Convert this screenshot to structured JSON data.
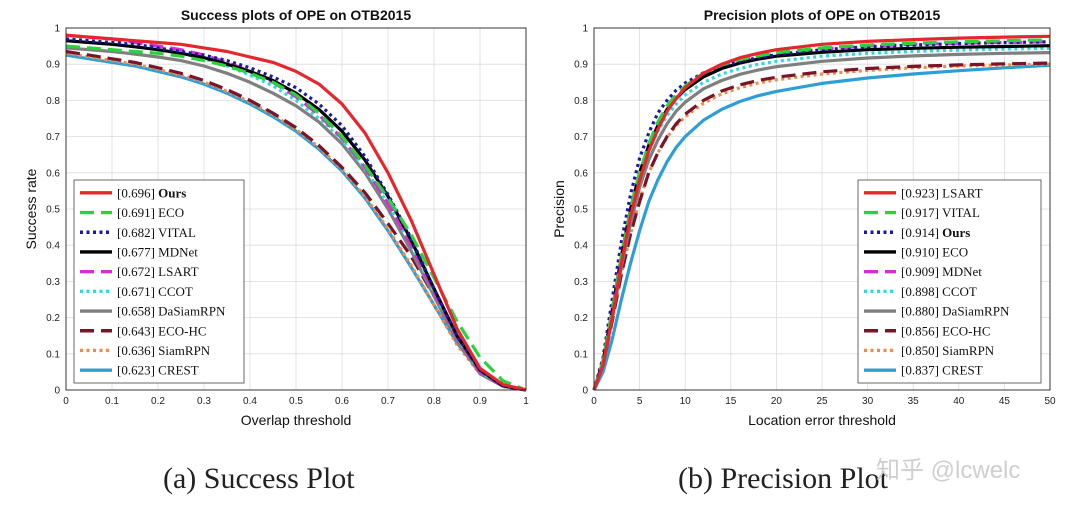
{
  "chart_data": [
    {
      "type": "line",
      "title": "Success plots of OPE on OTB2015",
      "xlabel": "Overlap threshold",
      "ylabel": "Success rate",
      "xlim": [
        0,
        1
      ],
      "ylim": [
        0,
        1
      ],
      "xticks": [
        "0",
        "0.1",
        "0.2",
        "0.3",
        "0.4",
        "0.5",
        "0.6",
        "0.7",
        "0.8",
        "0.9",
        "1"
      ],
      "yticks": [
        "0",
        "0.1",
        "0.2",
        "0.3",
        "0.4",
        "0.5",
        "0.6",
        "0.7",
        "0.8",
        "0.9",
        "1"
      ],
      "grid": true,
      "legend_position": "bottom-left",
      "x": [
        0,
        0.05,
        0.1,
        0.15,
        0.2,
        0.25,
        0.3,
        0.35,
        0.4,
        0.45,
        0.5,
        0.55,
        0.6,
        0.65,
        0.7,
        0.75,
        0.8,
        0.85,
        0.9,
        0.95,
        1.0
      ],
      "series": [
        {
          "name": "Ours",
          "score": "[0.696]",
          "bold": true,
          "color": "#e5262d",
          "dash": "solid",
          "values": [
            0.98,
            0.975,
            0.97,
            0.965,
            0.96,
            0.955,
            0.945,
            0.935,
            0.92,
            0.905,
            0.88,
            0.845,
            0.79,
            0.71,
            0.6,
            0.47,
            0.32,
            0.17,
            0.06,
            0.015,
            0
          ]
        },
        {
          "name": "ECO",
          "score": "[0.691]",
          "bold": false,
          "color": "#2ad33c",
          "dash": "dash",
          "values": [
            0.95,
            0.945,
            0.94,
            0.935,
            0.93,
            0.922,
            0.91,
            0.895,
            0.875,
            0.85,
            0.815,
            0.765,
            0.7,
            0.62,
            0.53,
            0.43,
            0.31,
            0.19,
            0.09,
            0.025,
            0
          ]
        },
        {
          "name": "VITAL",
          "score": "[0.682]",
          "bold": false,
          "color": "#1a1a9e",
          "dash": "dot",
          "values": [
            0.97,
            0.965,
            0.96,
            0.955,
            0.945,
            0.935,
            0.925,
            0.91,
            0.89,
            0.865,
            0.835,
            0.79,
            0.73,
            0.645,
            0.54,
            0.42,
            0.28,
            0.15,
            0.055,
            0.012,
            0
          ]
        },
        {
          "name": "MDNet",
          "score": "[0.677]",
          "bold": false,
          "color": "#000000",
          "dash": "solid",
          "values": [
            0.965,
            0.96,
            0.955,
            0.948,
            0.94,
            0.93,
            0.918,
            0.9,
            0.88,
            0.855,
            0.82,
            0.775,
            0.715,
            0.635,
            0.535,
            0.415,
            0.28,
            0.15,
            0.055,
            0.012,
            0
          ]
        },
        {
          "name": "LSART",
          "score": "[0.672]",
          "bold": false,
          "color": "#d62ed6",
          "dash": "dash",
          "values": [
            0.98,
            0.975,
            0.97,
            0.96,
            0.95,
            0.94,
            0.925,
            0.905,
            0.88,
            0.85,
            0.81,
            0.76,
            0.695,
            0.615,
            0.515,
            0.4,
            0.27,
            0.145,
            0.05,
            0.01,
            0
          ]
        },
        {
          "name": "CCOT",
          "score": "[0.671]",
          "bold": false,
          "color": "#33d6e0",
          "dash": "dot",
          "values": [
            0.965,
            0.96,
            0.955,
            0.948,
            0.94,
            0.93,
            0.915,
            0.895,
            0.87,
            0.84,
            0.8,
            0.75,
            0.69,
            0.61,
            0.515,
            0.4,
            0.27,
            0.145,
            0.05,
            0.01,
            0
          ]
        },
        {
          "name": "DaSiamRPN",
          "score": "[0.658]",
          "bold": false,
          "color": "#7f7f7f",
          "dash": "solid",
          "values": [
            0.945,
            0.94,
            0.935,
            0.928,
            0.92,
            0.91,
            0.895,
            0.875,
            0.85,
            0.82,
            0.785,
            0.74,
            0.68,
            0.6,
            0.5,
            0.385,
            0.26,
            0.135,
            0.045,
            0.01,
            0
          ]
        },
        {
          "name": "ECO-HC",
          "score": "[0.643]",
          "bold": false,
          "color": "#7a1426",
          "dash": "dash",
          "values": [
            0.935,
            0.925,
            0.915,
            0.905,
            0.89,
            0.875,
            0.855,
            0.83,
            0.8,
            0.765,
            0.725,
            0.675,
            0.615,
            0.545,
            0.46,
            0.37,
            0.26,
            0.145,
            0.055,
            0.012,
            0
          ]
        },
        {
          "name": "SiamRPN",
          "score": "[0.636]",
          "bold": false,
          "color": "#f08a4b",
          "dash": "dot",
          "values": [
            0.93,
            0.92,
            0.91,
            0.9,
            0.885,
            0.87,
            0.85,
            0.825,
            0.795,
            0.76,
            0.72,
            0.67,
            0.61,
            0.535,
            0.445,
            0.345,
            0.235,
            0.125,
            0.045,
            0.01,
            0
          ]
        },
        {
          "name": "CREST",
          "score": "[0.623]",
          "bold": false,
          "color": "#2e9fd6",
          "dash": "solid",
          "values": [
            0.925,
            0.915,
            0.905,
            0.895,
            0.88,
            0.865,
            0.845,
            0.82,
            0.79,
            0.755,
            0.715,
            0.665,
            0.605,
            0.53,
            0.44,
            0.34,
            0.235,
            0.13,
            0.05,
            0.012,
            0
          ]
        }
      ]
    },
    {
      "type": "line",
      "title": "Precision plots of OPE on OTB2015",
      "xlabel": "Location error threshold",
      "ylabel": "Precision",
      "xlim": [
        0,
        50
      ],
      "ylim": [
        0,
        1
      ],
      "xticks": [
        "0",
        "5",
        "10",
        "15",
        "20",
        "25",
        "30",
        "35",
        "40",
        "45",
        "50"
      ],
      "yticks": [
        "0",
        "0.1",
        "0.2",
        "0.3",
        "0.4",
        "0.5",
        "0.6",
        "0.7",
        "0.8",
        "0.9",
        "1"
      ],
      "grid": true,
      "legend_position": "bottom-right",
      "x": [
        0,
        1,
        2,
        3,
        4,
        5,
        6,
        7,
        8,
        9,
        10,
        12,
        14,
        16,
        18,
        20,
        25,
        30,
        35,
        40,
        45,
        50
      ],
      "series": [
        {
          "name": "LSART",
          "score": "[0.923]",
          "bold": false,
          "color": "#e5262d",
          "dash": "solid",
          "values": [
            0,
            0.07,
            0.2,
            0.35,
            0.48,
            0.58,
            0.66,
            0.72,
            0.77,
            0.805,
            0.835,
            0.875,
            0.9,
            0.918,
            0.93,
            0.94,
            0.955,
            0.963,
            0.968,
            0.972,
            0.975,
            0.977
          ]
        },
        {
          "name": "VITAL",
          "score": "[0.917]",
          "bold": false,
          "color": "#2ad33c",
          "dash": "dash",
          "values": [
            0,
            0.08,
            0.22,
            0.37,
            0.5,
            0.6,
            0.68,
            0.74,
            0.785,
            0.815,
            0.84,
            0.875,
            0.898,
            0.913,
            0.923,
            0.932,
            0.945,
            0.953,
            0.958,
            0.962,
            0.965,
            0.967
          ]
        },
        {
          "name": "Ours",
          "score": "[0.914]",
          "bold": true,
          "color": "#1a1a9e",
          "dash": "dot",
          "values": [
            0,
            0.09,
            0.25,
            0.41,
            0.54,
            0.64,
            0.71,
            0.765,
            0.8,
            0.828,
            0.848,
            0.876,
            0.895,
            0.908,
            0.918,
            0.926,
            0.94,
            0.948,
            0.953,
            0.957,
            0.96,
            0.962
          ]
        },
        {
          "name": "ECO",
          "score": "[0.910]",
          "bold": false,
          "color": "#000000",
          "dash": "solid",
          "values": [
            0,
            0.08,
            0.22,
            0.37,
            0.5,
            0.6,
            0.675,
            0.73,
            0.775,
            0.805,
            0.83,
            0.865,
            0.888,
            0.903,
            0.914,
            0.922,
            0.933,
            0.94,
            0.944,
            0.947,
            0.949,
            0.951
          ]
        },
        {
          "name": "MDNet",
          "score": "[0.909]",
          "bold": false,
          "color": "#d62ed6",
          "dash": "dash",
          "values": [
            0,
            0.07,
            0.21,
            0.36,
            0.49,
            0.59,
            0.67,
            0.73,
            0.775,
            0.808,
            0.835,
            0.872,
            0.895,
            0.91,
            0.92,
            0.928,
            0.942,
            0.95,
            0.955,
            0.958,
            0.96,
            0.962
          ]
        },
        {
          "name": "CCOT",
          "score": "[0.898]",
          "bold": false,
          "color": "#33d6e0",
          "dash": "dot",
          "values": [
            0,
            0.08,
            0.22,
            0.37,
            0.49,
            0.585,
            0.66,
            0.715,
            0.758,
            0.79,
            0.815,
            0.85,
            0.873,
            0.888,
            0.9,
            0.908,
            0.922,
            0.93,
            0.935,
            0.939,
            0.942,
            0.944
          ]
        },
        {
          "name": "DaSiamRPN",
          "score": "[0.880]",
          "bold": false,
          "color": "#7f7f7f",
          "dash": "solid",
          "values": [
            0,
            0.07,
            0.2,
            0.34,
            0.46,
            0.56,
            0.635,
            0.69,
            0.735,
            0.77,
            0.795,
            0.832,
            0.855,
            0.872,
            0.884,
            0.893,
            0.908,
            0.917,
            0.923,
            0.927,
            0.93,
            0.932
          ]
        },
        {
          "name": "ECO-HC",
          "score": "[0.856]",
          "bold": false,
          "color": "#7a1426",
          "dash": "dash",
          "values": [
            0,
            0.07,
            0.19,
            0.32,
            0.43,
            0.52,
            0.6,
            0.655,
            0.7,
            0.735,
            0.762,
            0.8,
            0.826,
            0.843,
            0.855,
            0.864,
            0.879,
            0.888,
            0.894,
            0.898,
            0.901,
            0.903
          ]
        },
        {
          "name": "SiamRPN",
          "score": "[0.850]",
          "bold": false,
          "color": "#f08a4b",
          "dash": "dot",
          "values": [
            0,
            0.07,
            0.19,
            0.32,
            0.43,
            0.525,
            0.6,
            0.655,
            0.698,
            0.73,
            0.755,
            0.792,
            0.818,
            0.835,
            0.848,
            0.857,
            0.873,
            0.883,
            0.89,
            0.895,
            0.898,
            0.9
          ]
        },
        {
          "name": "CREST",
          "score": "[0.837]",
          "bold": false,
          "color": "#2e9fd6",
          "dash": "solid",
          "values": [
            0,
            0.05,
            0.14,
            0.25,
            0.35,
            0.44,
            0.52,
            0.58,
            0.63,
            0.67,
            0.7,
            0.745,
            0.775,
            0.797,
            0.813,
            0.825,
            0.847,
            0.862,
            0.873,
            0.882,
            0.89,
            0.897
          ]
        }
      ]
    }
  ],
  "captions": {
    "left": "(a) Success Plot",
    "right": "(b) Precision Plot"
  },
  "watermark": "知乎 @lcwelc"
}
